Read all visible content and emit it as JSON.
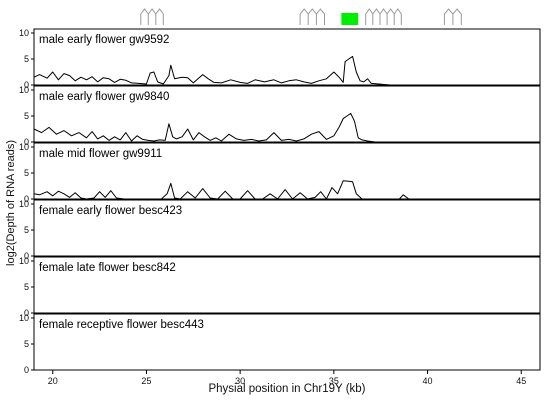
{
  "chart_data": {
    "type": "area",
    "xlabel": "Physial position in Chr19Y (kb)",
    "ylabel": "log2(Depth of RNA reads)",
    "xlim": [
      19,
      46
    ],
    "x_ticks": [
      "20",
      "25",
      "30",
      "35",
      "40",
      "45"
    ],
    "x_tick_values": [
      20,
      25,
      30,
      35,
      40,
      45
    ],
    "ylim": [
      0,
      10
    ],
    "y_ticks": [
      "0",
      "5",
      "10"
    ],
    "y_tick_values": [
      0,
      5,
      10
    ],
    "gene_track": {
      "gene_models": [
        {
          "start": 24.7,
          "end": 25.9
        },
        {
          "start": 33.2,
          "end": 34.5
        },
        {
          "start": 36.7,
          "end": 38.6
        },
        {
          "start": 40.9,
          "end": 41.8
        }
      ],
      "highlight": {
        "start": 35.4,
        "end": 36.3,
        "color": "#00ee00"
      }
    },
    "panels": [
      {
        "title": "male early flower gw9592",
        "x": [
          19.0,
          19.3,
          19.7,
          20.0,
          20.3,
          20.6,
          20.9,
          21.2,
          21.5,
          21.8,
          22.1,
          22.4,
          22.7,
          23.0,
          23.3,
          23.6,
          23.9,
          24.2,
          24.6,
          25.0,
          25.2,
          25.4,
          25.6,
          25.9,
          26.2,
          26.3,
          26.5,
          26.9,
          27.2,
          27.5,
          28.0,
          28.3,
          28.6,
          29.0,
          29.5,
          30.0,
          30.4,
          30.8,
          31.3,
          31.8,
          32.2,
          32.6,
          33.0,
          33.4,
          33.8,
          34.2,
          34.6,
          35.0,
          35.3,
          35.5,
          35.6,
          35.8,
          36.0,
          36.2,
          36.4,
          36.6,
          36.8,
          37.0,
          38.0,
          40.0,
          46.0
        ],
        "values": [
          1.5,
          2.0,
          1.3,
          2.5,
          1.0,
          2.2,
          1.8,
          0.8,
          1.5,
          1.0,
          1.6,
          0.6,
          1.4,
          1.2,
          0.5,
          1.1,
          0.9,
          0.4,
          0.3,
          0.2,
          2.3,
          2.5,
          0.6,
          0.2,
          1.8,
          3.8,
          1.2,
          1.5,
          1.4,
          0.4,
          2.0,
          1.2,
          0.5,
          0.4,
          1.0,
          0.5,
          0.3,
          1.0,
          0.6,
          1.0,
          0.4,
          0.8,
          1.0,
          0.6,
          0.3,
          0.8,
          1.2,
          2.5,
          1.4,
          0.5,
          4.5,
          5.0,
          5.5,
          2.5,
          0.8,
          0.6,
          1.2,
          0.3,
          0.0,
          0.0,
          0.0
        ]
      },
      {
        "title": "male early flower gw9840",
        "x": [
          19.0,
          19.4,
          19.8,
          20.2,
          20.6,
          21.0,
          21.4,
          21.8,
          22.1,
          22.4,
          22.7,
          23.0,
          23.3,
          23.6,
          23.9,
          24.2,
          24.5,
          24.8,
          25.1,
          25.4,
          25.7,
          26.0,
          26.2,
          26.4,
          26.6,
          26.9,
          27.2,
          27.5,
          27.8,
          28.1,
          28.4,
          28.7,
          29.0,
          29.4,
          29.8,
          30.2,
          30.6,
          31.0,
          31.4,
          31.8,
          32.2,
          32.6,
          33.0,
          33.4,
          33.8,
          34.2,
          34.6,
          35.0,
          35.3,
          35.5,
          35.7,
          35.9,
          36.1,
          36.3,
          36.5,
          36.8,
          37.2,
          38.0,
          40.0,
          46.0
        ],
        "values": [
          2.5,
          1.8,
          2.8,
          1.5,
          2.2,
          1.2,
          1.8,
          0.8,
          2.0,
          0.6,
          1.2,
          0.3,
          1.0,
          0.4,
          1.8,
          0.2,
          1.2,
          0.5,
          0.3,
          0.2,
          0.4,
          0.3,
          3.5,
          1.0,
          0.6,
          1.0,
          2.5,
          0.4,
          1.8,
          1.0,
          0.3,
          0.8,
          0.2,
          1.5,
          0.6,
          0.3,
          0.5,
          0.2,
          0.4,
          1.8,
          0.3,
          0.5,
          0.2,
          0.6,
          1.5,
          2.0,
          0.5,
          1.2,
          3.0,
          4.5,
          5.0,
          5.5,
          4.0,
          0.8,
          0.4,
          0.2,
          0.0,
          0.0,
          0.0,
          0.0
        ]
      },
      {
        "title": "male mid flower gw9911",
        "x": [
          19.0,
          19.3,
          19.7,
          20.0,
          20.3,
          20.6,
          20.9,
          21.2,
          21.5,
          21.8,
          22.2,
          22.5,
          22.8,
          23.1,
          23.4,
          23.8,
          24.2,
          24.6,
          25.0,
          25.4,
          25.8,
          26.1,
          26.3,
          26.5,
          26.8,
          27.2,
          27.6,
          28.0,
          28.4,
          28.8,
          29.2,
          29.6,
          30.0,
          30.4,
          30.8,
          31.2,
          31.6,
          32.0,
          32.4,
          32.8,
          33.2,
          33.6,
          34.0,
          34.3,
          34.6,
          34.9,
          35.2,
          35.5,
          35.8,
          36.0,
          36.2,
          36.5,
          37.0,
          37.5,
          38.0,
          38.5,
          38.7,
          39.0,
          40.0,
          46.0
        ],
        "values": [
          1.0,
          0.8,
          1.4,
          0.6,
          1.5,
          1.0,
          0.3,
          1.2,
          0.2,
          0.0,
          0.2,
          1.4,
          0.3,
          1.6,
          0.2,
          0.0,
          0.0,
          0.0,
          0.0,
          0.0,
          0.0,
          1.0,
          3.0,
          0.2,
          0.0,
          1.4,
          0.2,
          2.0,
          0.2,
          0.0,
          1.5,
          0.0,
          0.0,
          1.6,
          0.0,
          0.0,
          1.0,
          0.0,
          1.8,
          0.0,
          1.2,
          0.0,
          0.3,
          1.4,
          0.0,
          2.2,
          1.0,
          3.5,
          3.4,
          3.3,
          1.0,
          0.0,
          0.0,
          0.0,
          0.0,
          0.0,
          0.8,
          0.0,
          0.0,
          0.0
        ]
      },
      {
        "title": "female early flower besc423",
        "x": [
          19.0,
          46.0
        ],
        "values": [
          0,
          0
        ]
      },
      {
        "title": "female late flower besc842",
        "x": [
          19.0,
          46.0
        ],
        "values": [
          0,
          0
        ]
      },
      {
        "title": "female receptive flower besc443",
        "x": [
          19.0,
          46.0
        ],
        "values": [
          0,
          0
        ]
      }
    ]
  }
}
